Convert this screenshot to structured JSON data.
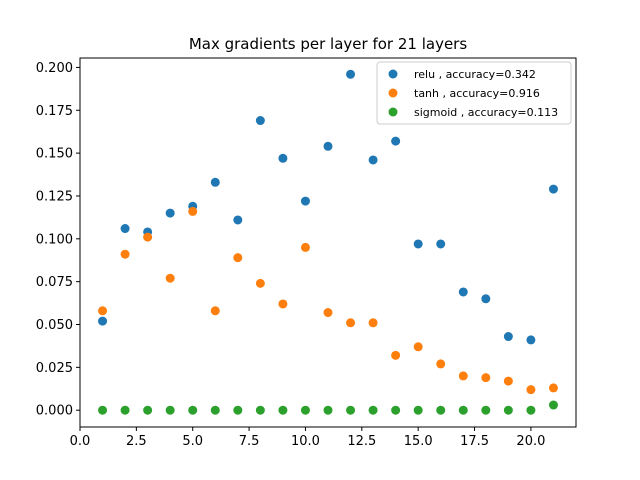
{
  "chart_data": {
    "type": "scatter",
    "title": "Max gradients per layer for 21 layers",
    "xlabel": "",
    "ylabel": "",
    "xlim": [
      0,
      22
    ],
    "ylim": [
      -0.0098,
      0.2055
    ],
    "xticks": [
      0.0,
      2.5,
      5.0,
      7.5,
      10.0,
      12.5,
      15.0,
      17.5,
      20.0
    ],
    "xtick_labels": [
      "0.0",
      "2.5",
      "5.0",
      "7.5",
      "10.0",
      "12.5",
      "15.0",
      "17.5",
      "20.0"
    ],
    "yticks": [
      0.0,
      0.025,
      0.05,
      0.075,
      0.1,
      0.125,
      0.15,
      0.175,
      0.2
    ],
    "ytick_labels": [
      "0.000",
      "0.025",
      "0.050",
      "0.075",
      "0.100",
      "0.125",
      "0.150",
      "0.175",
      "0.200"
    ],
    "grid": false,
    "legend_position": "top-right",
    "x": [
      1,
      2,
      3,
      4,
      5,
      6,
      7,
      8,
      9,
      10,
      11,
      12,
      13,
      14,
      15,
      16,
      17,
      18,
      19,
      20,
      21
    ],
    "series": [
      {
        "name": "relu , accuracy=0.342",
        "color": "#1f77b4",
        "values": [
          0.052,
          0.106,
          0.104,
          0.115,
          0.119,
          0.133,
          0.111,
          0.169,
          0.147,
          0.122,
          0.154,
          0.196,
          0.146,
          0.157,
          0.097,
          0.097,
          0.069,
          0.065,
          0.043,
          0.041,
          0.129
        ]
      },
      {
        "name": "tanh , accuracy=0.916",
        "color": "#ff7f0e",
        "values": [
          0.058,
          0.091,
          0.101,
          0.077,
          0.116,
          0.058,
          0.089,
          0.074,
          0.062,
          0.095,
          0.057,
          0.051,
          0.051,
          0.032,
          0.037,
          0.027,
          0.02,
          0.019,
          0.017,
          0.012,
          0.013
        ]
      },
      {
        "name": "sigmoid , accuracy=0.113",
        "color": "#2ca02c",
        "values": [
          0.0,
          0.0,
          0.0,
          0.0,
          0.0,
          0.0,
          0.0,
          0.0,
          0.0,
          0.0,
          0.0,
          0.0,
          0.0,
          0.0,
          0.0,
          0.0,
          0.0,
          0.0,
          0.0,
          0.0,
          0.003
        ]
      }
    ]
  }
}
